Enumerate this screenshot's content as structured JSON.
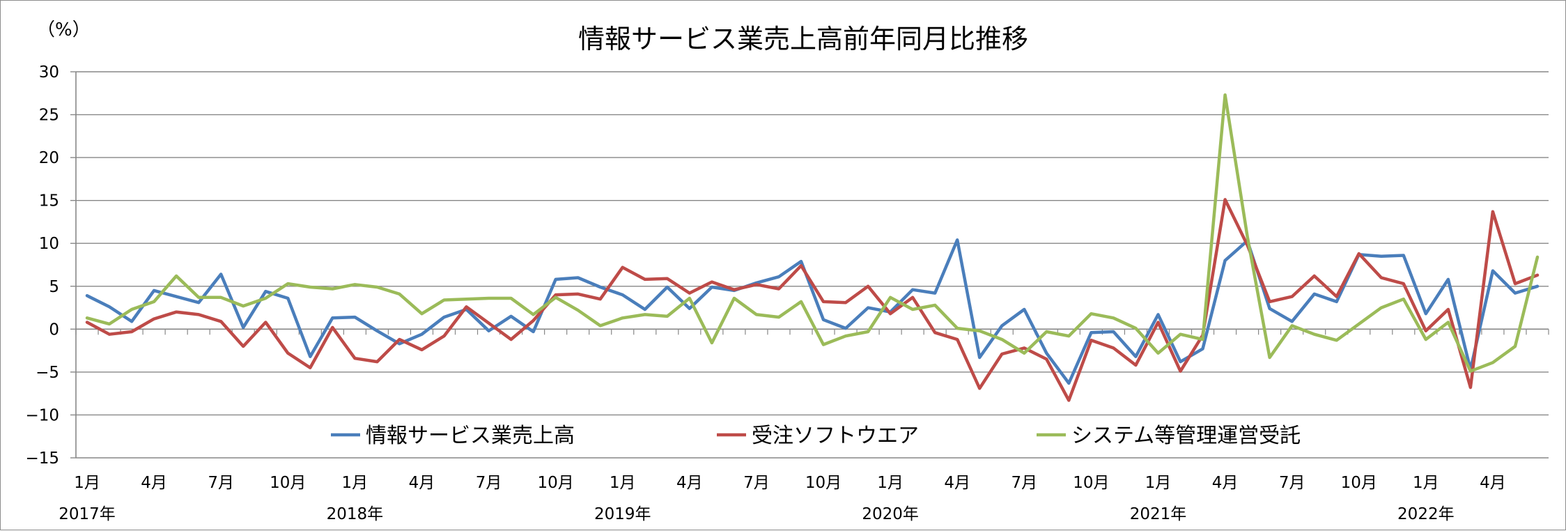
{
  "chart_data": {
    "type": "line",
    "title": "情報サービス業売上高前年同月比推移",
    "ylabel": "（%）",
    "xlabel": "",
    "ylim": [
      -15,
      30
    ],
    "yticks": [
      "30",
      "25",
      "20",
      "15",
      "10",
      "5",
      "0",
      "−5",
      "−10",
      "−15"
    ],
    "ytick_values": [
      30,
      25,
      20,
      15,
      10,
      5,
      0,
      -5,
      -10,
      -15
    ],
    "grid": true,
    "legend_position": "bottom-inside",
    "month_ticks": [
      {
        "index": 0,
        "label": "1月"
      },
      {
        "index": 3,
        "label": "4月"
      },
      {
        "index": 6,
        "label": "7月"
      },
      {
        "index": 9,
        "label": "10月"
      },
      {
        "index": 12,
        "label": "1月"
      },
      {
        "index": 15,
        "label": "4月"
      },
      {
        "index": 18,
        "label": "7月"
      },
      {
        "index": 21,
        "label": "10月"
      },
      {
        "index": 24,
        "label": "1月"
      },
      {
        "index": 27,
        "label": "4月"
      },
      {
        "index": 30,
        "label": "7月"
      },
      {
        "index": 33,
        "label": "10月"
      },
      {
        "index": 36,
        "label": "1月"
      },
      {
        "index": 39,
        "label": "4月"
      },
      {
        "index": 42,
        "label": "7月"
      },
      {
        "index": 45,
        "label": "10月"
      },
      {
        "index": 48,
        "label": "1月"
      },
      {
        "index": 51,
        "label": "4月"
      },
      {
        "index": 54,
        "label": "7月"
      },
      {
        "index": 57,
        "label": "10月"
      },
      {
        "index": 60,
        "label": "1月"
      },
      {
        "index": 63,
        "label": "4月"
      }
    ],
    "year_ticks": [
      {
        "index": 0,
        "label": "2017年"
      },
      {
        "index": 12,
        "label": "2018年"
      },
      {
        "index": 24,
        "label": "2019年"
      },
      {
        "index": 36,
        "label": "2020年"
      },
      {
        "index": 48,
        "label": "2021年"
      },
      {
        "index": 60,
        "label": "2022年"
      }
    ],
    "x_count": 66,
    "series": [
      {
        "name": "情報サービス業売上高",
        "color": "#4a7ebb",
        "values": [
          3.9,
          2.6,
          0.9,
          4.5,
          3.8,
          3.1,
          6.4,
          0.2,
          4.4,
          3.6,
          -3.2,
          1.3,
          1.4,
          -0.2,
          -1.7,
          -0.6,
          1.4,
          2.3,
          -0.2,
          1.5,
          -0.3,
          5.8,
          6.0,
          4.9,
          4.0,
          2.3,
          4.9,
          2.4,
          4.9,
          4.5,
          5.4,
          6.1,
          7.9,
          1.1,
          0.1,
          2.5,
          2.0,
          4.6,
          4.2,
          10.4,
          -3.3,
          0.4,
          2.3,
          -2.8,
          -6.3,
          -0.4,
          -0.3,
          -3.2,
          1.7,
          -3.8,
          -2.3,
          8.0,
          10.3,
          2.4,
          0.9,
          4.1,
          3.2,
          8.7,
          8.5,
          8.6,
          1.8,
          5.8,
          -4.7,
          6.8,
          4.2,
          5.0
        ]
      },
      {
        "name": "受注ソフトウエア",
        "color": "#be4b48",
        "values": [
          0.8,
          -0.6,
          -0.3,
          1.2,
          2.0,
          1.7,
          0.9,
          -2.0,
          0.8,
          -2.8,
          -4.5,
          0.2,
          -3.4,
          -3.8,
          -1.2,
          -2.4,
          -0.8,
          2.6,
          0.7,
          -1.2,
          1.0,
          4.0,
          4.1,
          3.5,
          7.2,
          5.8,
          5.9,
          4.2,
          5.5,
          4.6,
          5.2,
          4.7,
          7.4,
          3.2,
          3.1,
          5.0,
          1.8,
          3.7,
          -0.4,
          -1.2,
          -6.9,
          -2.9,
          -2.2,
          -3.5,
          -8.3,
          -1.3,
          -2.2,
          -4.2,
          0.8,
          -4.9,
          -0.7,
          15.1,
          9.8,
          3.2,
          3.8,
          6.2,
          3.8,
          8.8,
          6.0,
          5.3,
          -0.2,
          2.3,
          -6.8,
          13.7,
          5.3,
          6.3
        ]
      },
      {
        "name": "システム等管理運営受託",
        "color": "#9bbb59",
        "values": [
          1.3,
          0.6,
          2.3,
          3.2,
          6.2,
          3.7,
          3.7,
          2.7,
          3.6,
          5.3,
          4.9,
          4.7,
          5.2,
          4.9,
          4.1,
          1.8,
          3.4,
          3.5,
          3.6,
          3.6,
          1.7,
          3.7,
          2.2,
          0.4,
          1.3,
          1.7,
          1.5,
          3.6,
          -1.6,
          3.6,
          1.7,
          1.4,
          3.2,
          -1.8,
          -0.8,
          -0.3,
          3.7,
          2.3,
          2.8,
          0.1,
          -0.2,
          -1.2,
          -2.8,
          -0.3,
          -0.8,
          1.8,
          1.3,
          0.1,
          -2.8,
          -0.6,
          -1.2,
          27.3,
          10.8,
          -3.3,
          0.4,
          -0.6,
          -1.3,
          0.6,
          2.5,
          3.5,
          -1.2,
          0.8,
          -4.9,
          -3.9,
          -2.0,
          8.4
        ]
      }
    ]
  }
}
